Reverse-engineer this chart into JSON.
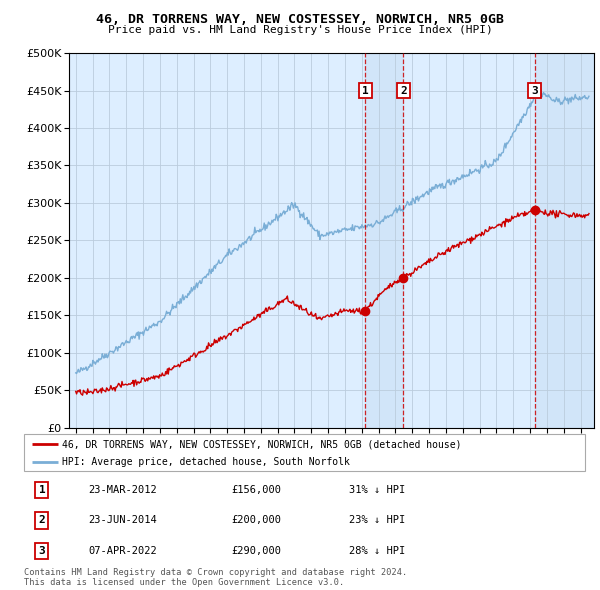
{
  "title": "46, DR TORRENS WAY, NEW COSTESSEY, NORWICH, NR5 0GB",
  "subtitle": "Price paid vs. HM Land Registry's House Price Index (HPI)",
  "hpi_color": "#7aaed6",
  "price_color": "#cc0000",
  "background_plot": "#ddeeff",
  "grid_color": "#bbccdd",
  "ylim": [
    0,
    500000
  ],
  "yticks": [
    0,
    50000,
    100000,
    150000,
    200000,
    250000,
    300000,
    350000,
    400000,
    450000,
    500000
  ],
  "transactions": [
    {
      "num": 1,
      "date": "23-MAR-2012",
      "price": 156000,
      "pct": "31%",
      "x": 2012.22
    },
    {
      "num": 2,
      "date": "23-JUN-2014",
      "price": 200000,
      "pct": "23%",
      "x": 2014.47
    },
    {
      "num": 3,
      "date": "07-APR-2022",
      "price": 290000,
      "pct": "28%",
      "x": 2022.27
    }
  ],
  "legend_label_price": "46, DR TORRENS WAY, NEW COSTESSEY, NORWICH, NR5 0GB (detached house)",
  "legend_label_hpi": "HPI: Average price, detached house, South Norfolk",
  "footer": "Contains HM Land Registry data © Crown copyright and database right 2024.\nThis data is licensed under the Open Government Licence v3.0.",
  "xlim_start": 1994.6,
  "xlim_end": 2025.8
}
